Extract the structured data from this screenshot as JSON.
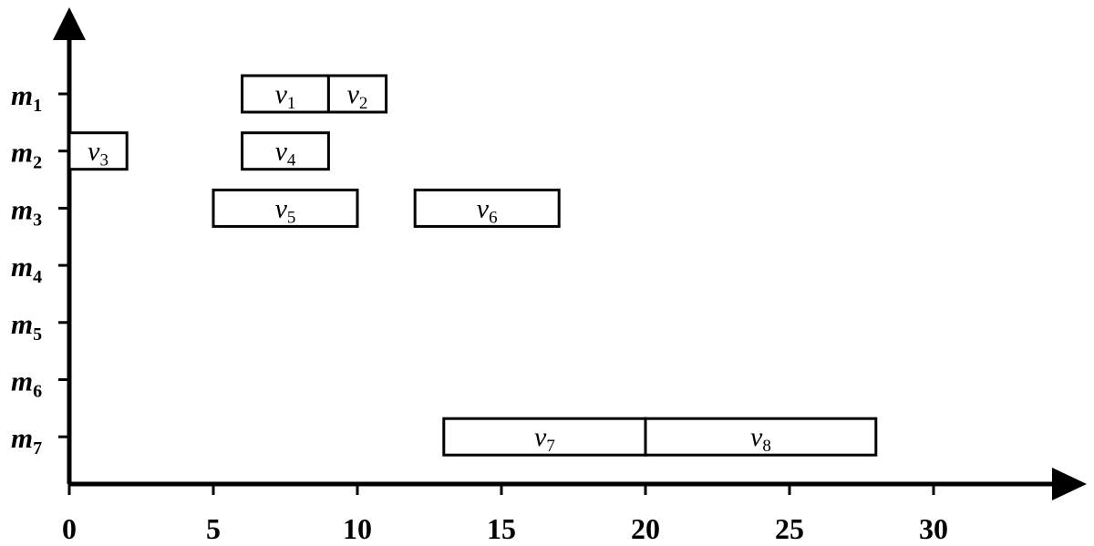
{
  "chart_data": {
    "type": "gantt",
    "title": "",
    "xlabel": "",
    "ylabel": "",
    "xlim": [
      0,
      34
    ],
    "x_ticks": [
      0,
      5,
      10,
      15,
      20,
      25,
      30
    ],
    "grid": false,
    "legend": "none",
    "rows": [
      {
        "base": "m",
        "sub": "1"
      },
      {
        "base": "m",
        "sub": "2"
      },
      {
        "base": "m",
        "sub": "3"
      },
      {
        "base": "m",
        "sub": "4"
      },
      {
        "base": "m",
        "sub": "5"
      },
      {
        "base": "m",
        "sub": "6"
      },
      {
        "base": "m",
        "sub": "7"
      }
    ],
    "tasks": [
      {
        "base": "v",
        "sub": "1",
        "row": 0,
        "start": 6,
        "end": 9
      },
      {
        "base": "v",
        "sub": "2",
        "row": 0,
        "start": 9,
        "end": 11
      },
      {
        "base": "v",
        "sub": "3",
        "row": 1,
        "start": 0,
        "end": 2
      },
      {
        "base": "v",
        "sub": "4",
        "row": 1,
        "start": 6,
        "end": 9
      },
      {
        "base": "v",
        "sub": "5",
        "row": 2,
        "start": 5,
        "end": 10
      },
      {
        "base": "v",
        "sub": "6",
        "row": 2,
        "start": 12,
        "end": 17
      },
      {
        "base": "v",
        "sub": "7",
        "row": 6,
        "start": 13,
        "end": 20
      },
      {
        "base": "v",
        "sub": "8",
        "row": 6,
        "start": 20,
        "end": 28
      }
    ]
  }
}
